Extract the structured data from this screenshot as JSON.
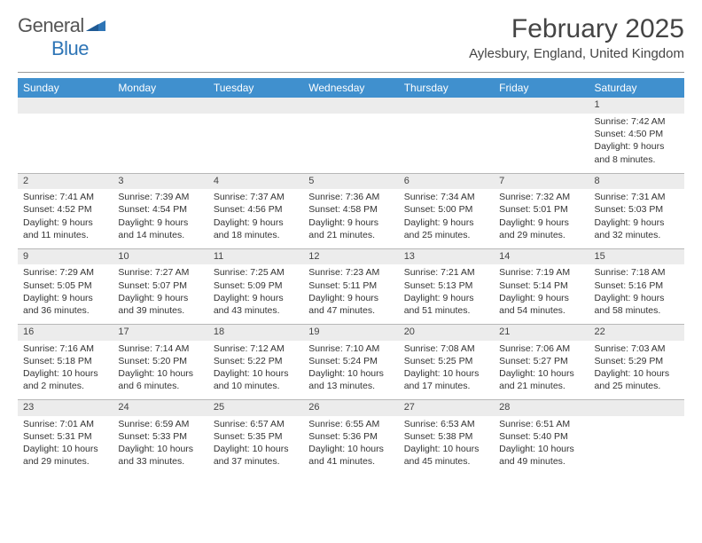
{
  "logo": {
    "text1": "General",
    "text2": "Blue",
    "tri_color": "#2e75b6"
  },
  "header": {
    "month": "February 2025",
    "location": "Aylesbury, England, United Kingdom"
  },
  "colors": {
    "header_bg": "#4090ce",
    "header_text": "#ffffff",
    "daynum_bg": "#ececec",
    "border": "#b8b8b8",
    "text": "#333333"
  },
  "days": [
    "Sunday",
    "Monday",
    "Tuesday",
    "Wednesday",
    "Thursday",
    "Friday",
    "Saturday"
  ],
  "weeks": [
    [
      {
        "n": "",
        "sr": "",
        "ss": "",
        "dl": ""
      },
      {
        "n": "",
        "sr": "",
        "ss": "",
        "dl": ""
      },
      {
        "n": "",
        "sr": "",
        "ss": "",
        "dl": ""
      },
      {
        "n": "",
        "sr": "",
        "ss": "",
        "dl": ""
      },
      {
        "n": "",
        "sr": "",
        "ss": "",
        "dl": ""
      },
      {
        "n": "",
        "sr": "",
        "ss": "",
        "dl": ""
      },
      {
        "n": "1",
        "sr": "Sunrise: 7:42 AM",
        "ss": "Sunset: 4:50 PM",
        "dl": "Daylight: 9 hours and 8 minutes."
      }
    ],
    [
      {
        "n": "2",
        "sr": "Sunrise: 7:41 AM",
        "ss": "Sunset: 4:52 PM",
        "dl": "Daylight: 9 hours and 11 minutes."
      },
      {
        "n": "3",
        "sr": "Sunrise: 7:39 AM",
        "ss": "Sunset: 4:54 PM",
        "dl": "Daylight: 9 hours and 14 minutes."
      },
      {
        "n": "4",
        "sr": "Sunrise: 7:37 AM",
        "ss": "Sunset: 4:56 PM",
        "dl": "Daylight: 9 hours and 18 minutes."
      },
      {
        "n": "5",
        "sr": "Sunrise: 7:36 AM",
        "ss": "Sunset: 4:58 PM",
        "dl": "Daylight: 9 hours and 21 minutes."
      },
      {
        "n": "6",
        "sr": "Sunrise: 7:34 AM",
        "ss": "Sunset: 5:00 PM",
        "dl": "Daylight: 9 hours and 25 minutes."
      },
      {
        "n": "7",
        "sr": "Sunrise: 7:32 AM",
        "ss": "Sunset: 5:01 PM",
        "dl": "Daylight: 9 hours and 29 minutes."
      },
      {
        "n": "8",
        "sr": "Sunrise: 7:31 AM",
        "ss": "Sunset: 5:03 PM",
        "dl": "Daylight: 9 hours and 32 minutes."
      }
    ],
    [
      {
        "n": "9",
        "sr": "Sunrise: 7:29 AM",
        "ss": "Sunset: 5:05 PM",
        "dl": "Daylight: 9 hours and 36 minutes."
      },
      {
        "n": "10",
        "sr": "Sunrise: 7:27 AM",
        "ss": "Sunset: 5:07 PM",
        "dl": "Daylight: 9 hours and 39 minutes."
      },
      {
        "n": "11",
        "sr": "Sunrise: 7:25 AM",
        "ss": "Sunset: 5:09 PM",
        "dl": "Daylight: 9 hours and 43 minutes."
      },
      {
        "n": "12",
        "sr": "Sunrise: 7:23 AM",
        "ss": "Sunset: 5:11 PM",
        "dl": "Daylight: 9 hours and 47 minutes."
      },
      {
        "n": "13",
        "sr": "Sunrise: 7:21 AM",
        "ss": "Sunset: 5:13 PM",
        "dl": "Daylight: 9 hours and 51 minutes."
      },
      {
        "n": "14",
        "sr": "Sunrise: 7:19 AM",
        "ss": "Sunset: 5:14 PM",
        "dl": "Daylight: 9 hours and 54 minutes."
      },
      {
        "n": "15",
        "sr": "Sunrise: 7:18 AM",
        "ss": "Sunset: 5:16 PM",
        "dl": "Daylight: 9 hours and 58 minutes."
      }
    ],
    [
      {
        "n": "16",
        "sr": "Sunrise: 7:16 AM",
        "ss": "Sunset: 5:18 PM",
        "dl": "Daylight: 10 hours and 2 minutes."
      },
      {
        "n": "17",
        "sr": "Sunrise: 7:14 AM",
        "ss": "Sunset: 5:20 PM",
        "dl": "Daylight: 10 hours and 6 minutes."
      },
      {
        "n": "18",
        "sr": "Sunrise: 7:12 AM",
        "ss": "Sunset: 5:22 PM",
        "dl": "Daylight: 10 hours and 10 minutes."
      },
      {
        "n": "19",
        "sr": "Sunrise: 7:10 AM",
        "ss": "Sunset: 5:24 PM",
        "dl": "Daylight: 10 hours and 13 minutes."
      },
      {
        "n": "20",
        "sr": "Sunrise: 7:08 AM",
        "ss": "Sunset: 5:25 PM",
        "dl": "Daylight: 10 hours and 17 minutes."
      },
      {
        "n": "21",
        "sr": "Sunrise: 7:06 AM",
        "ss": "Sunset: 5:27 PM",
        "dl": "Daylight: 10 hours and 21 minutes."
      },
      {
        "n": "22",
        "sr": "Sunrise: 7:03 AM",
        "ss": "Sunset: 5:29 PM",
        "dl": "Daylight: 10 hours and 25 minutes."
      }
    ],
    [
      {
        "n": "23",
        "sr": "Sunrise: 7:01 AM",
        "ss": "Sunset: 5:31 PM",
        "dl": "Daylight: 10 hours and 29 minutes."
      },
      {
        "n": "24",
        "sr": "Sunrise: 6:59 AM",
        "ss": "Sunset: 5:33 PM",
        "dl": "Daylight: 10 hours and 33 minutes."
      },
      {
        "n": "25",
        "sr": "Sunrise: 6:57 AM",
        "ss": "Sunset: 5:35 PM",
        "dl": "Daylight: 10 hours and 37 minutes."
      },
      {
        "n": "26",
        "sr": "Sunrise: 6:55 AM",
        "ss": "Sunset: 5:36 PM",
        "dl": "Daylight: 10 hours and 41 minutes."
      },
      {
        "n": "27",
        "sr": "Sunrise: 6:53 AM",
        "ss": "Sunset: 5:38 PM",
        "dl": "Daylight: 10 hours and 45 minutes."
      },
      {
        "n": "28",
        "sr": "Sunrise: 6:51 AM",
        "ss": "Sunset: 5:40 PM",
        "dl": "Daylight: 10 hours and 49 minutes."
      },
      {
        "n": "",
        "sr": "",
        "ss": "",
        "dl": ""
      }
    ]
  ]
}
